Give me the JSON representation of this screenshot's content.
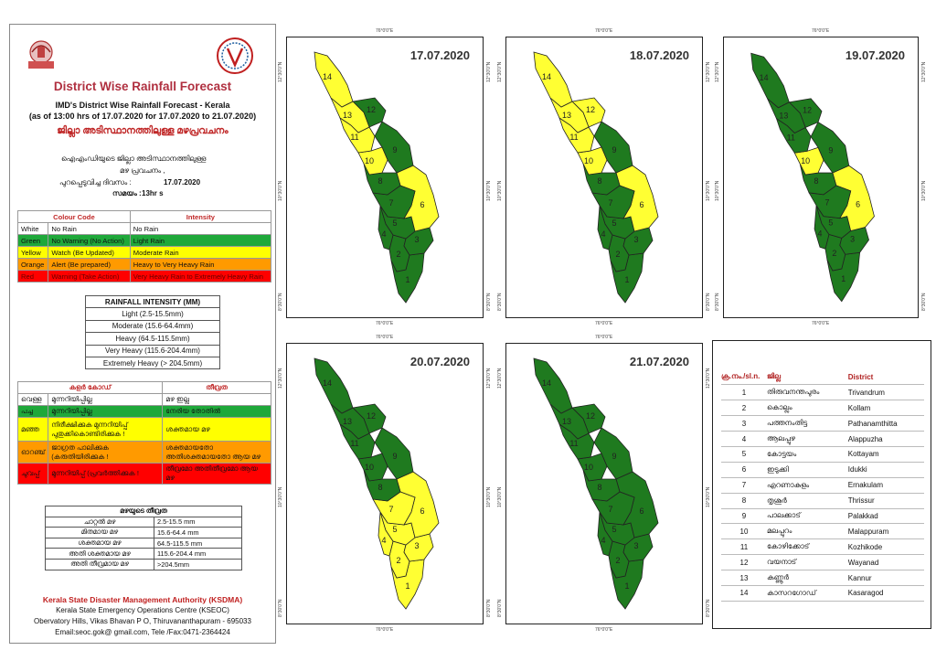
{
  "header": {
    "title": "District Wise Rainfall Forecast",
    "subtitle1": "IMD's District Wise Rainfall Forecast - Kerala",
    "subtitle2": "(as of 13:00 hrs of 17.07.2020  for 17.07.2020  to 21.07.2020)",
    "subtitle_ml": "ജില്ലാ അടിസ്ഥാനത്തിലുള്ള മഴപ്രവചനം",
    "ml_line1": "ഐഎംഡിയുടെ ജില്ലാ    അടിസ്ഥാനത്തിലുള്ള",
    "ml_line2": "മഴ പ്രവചനം  ,",
    "ml_line3_label": "പുറപ്പെടുവിച്ച          ദിവസം :",
    "ml_line3_value": "17.07.2020",
    "ml_line4_label": "സമയം :",
    "ml_line4_value": "13hr s"
  },
  "colour_code": {
    "headers": [
      "Colour Code",
      "Intensity"
    ],
    "rows": [
      {
        "colour": "White",
        "meaning": "No Rain",
        "intensity": "No Rain",
        "bg": "#ffffff"
      },
      {
        "colour": "Green",
        "meaning": "No Warning (No Action)",
        "intensity": "Light Rain",
        "bg": "#1fa83a"
      },
      {
        "colour": "Yellow",
        "meaning": "Watch (Be Updated)",
        "intensity": "Moderate Rain",
        "bg": "#ffff00"
      },
      {
        "colour": "Orange",
        "meaning": "Alert (Be prepared)",
        "intensity": "Heavy to Very Heavy Rain",
        "bg": "#ff9a00"
      },
      {
        "colour": "Red",
        "meaning": "Warning (Take Action)",
        "intensity": "Very Heavy Rain to Extremely Heavy Rain",
        "bg": "#ff0000"
      }
    ]
  },
  "rainfall_intensity": {
    "title": "RAINFALL INTENSITY (MM)",
    "rows": [
      "Light (2.5-15.5mm)",
      "Moderate (15.6-64.4mm)",
      "Heavy (64.5-115.5mm)",
      "Very Heavy (115.6-204.4mm)",
      "Extremely Heavy (> 204.5mm)"
    ]
  },
  "ml_colour_code": {
    "headers": [
      "കളർ കോഡ്",
      "തീവ്രത"
    ],
    "rows": [
      {
        "colour": "വെള്ള",
        "meaning": "മുന്നറിയിപ്പില്ല",
        "intensity": "മഴ ഇല്ല",
        "bg": "#ffffff"
      },
      {
        "colour": "പച്ച",
        "meaning": "മുന്നറിയിപ്പില്ല",
        "intensity": "നേരിയ തോതിൽ",
        "bg": "#1fa83a"
      },
      {
        "colour": "മഞ്ഞ",
        "meaning": "നിരീക്ഷിക്കുക മുന്നറിയിപ്പ് പുതുക്കികൊണ്ടിരിക്കുക !",
        "intensity": "ശക്തമായ മഴ",
        "bg": "#ffff00"
      },
      {
        "colour": "ഓറഞ്ച്",
        "meaning": "ജാഗ്രത പാലിക്കുക (കരുതിയിരിക്കുക !",
        "intensity": "ശക്തമായതോ അതിശക്തമായതോ ആയ മഴ",
        "bg": "#ff9a00"
      },
      {
        "colour": "ചുവപ്പ്",
        "meaning": "മുന്നറിയിപ്പ് (പ്രവർത്തിക്കുക !",
        "intensity": "തീവ്രമോ അതിതീവ്രമോ ആയ മഴ",
        "bg": "#ff0000"
      }
    ]
  },
  "ml_intensity": {
    "title": "മഴയുടെ തീവ്രത",
    "rows": [
      {
        "label": "ചാറ്റൽ മഴ",
        "value": "2.5-15.5 mm"
      },
      {
        "label": "മിതമായ മഴ",
        "value": "15.6-64.4 mm"
      },
      {
        "label": "ശക്തമായ മഴ",
        "value": "64.5-115.5 mm"
      },
      {
        "label": "അതി ശക്തമായ മഴ",
        "value": "115.6-204.4 mm"
      },
      {
        "label": "അതി തീവ്രമായ മഴ",
        "value": ">204.5mm"
      }
    ]
  },
  "footer": {
    "org": "Kerala State Disaster Management Authority (KSDMA)",
    "line1": "Kerala State Emergency Operations Centre (KSEOC)",
    "line2": "Obervatory Hills, Vikas Bhavan P O, Thiruvananthapuram - 695033",
    "line3": "Email:seoc.gok@ gmail.com, Tele /Fax:0471-2364424"
  },
  "map_coords": {
    "top": "76°0'0\"E",
    "bottom": "76°0'0\"E",
    "lat1": "12°30'0\"N",
    "lat2": "10°30'0\"N",
    "lat3": "8°30'0\"N"
  },
  "maps": [
    {
      "date": "17.07.2020",
      "colors": {
        "1": "#1f7a1f",
        "2": "#1f7a1f",
        "3": "#1f7a1f",
        "4": "#1f7a1f",
        "5": "#1f7a1f",
        "6": "#ffff33",
        "7": "#1f7a1f",
        "8": "#1f7a1f",
        "9": "#1f7a1f",
        "10": "#ffff33",
        "11": "#ffff33",
        "12": "#1f7a1f",
        "13": "#ffff33",
        "14": "#ffff33"
      }
    },
    {
      "date": "18.07.2020",
      "colors": {
        "1": "#1f7a1f",
        "2": "#1f7a1f",
        "3": "#1f7a1f",
        "4": "#1f7a1f",
        "5": "#1f7a1f",
        "6": "#ffff33",
        "7": "#1f7a1f",
        "8": "#1f7a1f",
        "9": "#1f7a1f",
        "10": "#ffff33",
        "11": "#ffff33",
        "12": "#ffff33",
        "13": "#ffff33",
        "14": "#ffff33"
      }
    },
    {
      "date": "19.07.2020",
      "colors": {
        "1": "#1f7a1f",
        "2": "#1f7a1f",
        "3": "#1f7a1f",
        "4": "#1f7a1f",
        "5": "#1f7a1f",
        "6": "#ffff33",
        "7": "#1f7a1f",
        "8": "#1f7a1f",
        "9": "#1f7a1f",
        "10": "#ffff33",
        "11": "#1f7a1f",
        "12": "#1f7a1f",
        "13": "#1f7a1f",
        "14": "#1f7a1f"
      }
    },
    {
      "date": "20.07.2020",
      "colors": {
        "1": "#ffff33",
        "2": "#ffff33",
        "3": "#ffff33",
        "4": "#ffff33",
        "5": "#ffff33",
        "6": "#ffff33",
        "7": "#ffff33",
        "8": "#1f7a1f",
        "9": "#1f7a1f",
        "10": "#1f7a1f",
        "11": "#1f7a1f",
        "12": "#1f7a1f",
        "13": "#1f7a1f",
        "14": "#1f7a1f"
      }
    },
    {
      "date": "21.07.2020",
      "colors": {
        "1": "#1f7a1f",
        "2": "#1f7a1f",
        "3": "#1f7a1f",
        "4": "#1f7a1f",
        "5": "#1f7a1f",
        "6": "#1f7a1f",
        "7": "#1f7a1f",
        "8": "#1f7a1f",
        "9": "#1f7a1f",
        "10": "#1f7a1f",
        "11": "#1f7a1f",
        "12": "#1f7a1f",
        "13": "#1f7a1f",
        "14": "#1f7a1f"
      }
    }
  ],
  "districts": {
    "headers": [
      "ക്ര.നം./sl.n.",
      "ജില്ല",
      "District"
    ],
    "rows": [
      {
        "n": "1",
        "ml": "തിരുവനന്തപുരം",
        "en": "Trivandrum"
      },
      {
        "n": "2",
        "ml": "കൊല്ലം",
        "en": "Kollam"
      },
      {
        "n": "3",
        "ml": "പത്തനംതിട്ട",
        "en": "Pathanamthitta"
      },
      {
        "n": "4",
        "ml": "ആലപ്പുഴ",
        "en": "Alappuzha"
      },
      {
        "n": "5",
        "ml": "കോട്ടയം",
        "en": "Kottayam"
      },
      {
        "n": "6",
        "ml": "ഇടുക്കി",
        "en": "Idukki"
      },
      {
        "n": "7",
        "ml": "എറണാകുളം",
        "en": "Ernakulam"
      },
      {
        "n": "8",
        "ml": "തൃശൂർ",
        "en": "Thrissur"
      },
      {
        "n": "9",
        "ml": "പാലക്കാട്",
        "en": "Palakkad"
      },
      {
        "n": "10",
        "ml": "മലപ്പുറം",
        "en": "Malappuram"
      },
      {
        "n": "11",
        "ml": "കോഴിക്കോട്",
        "en": "Kozhikode"
      },
      {
        "n": "12",
        "ml": "വയനാട്",
        "en": "Wayanad"
      },
      {
        "n": "13",
        "ml": "കണ്ണൂർ",
        "en": "Kannur"
      },
      {
        "n": "14",
        "ml": "കാസറഗോഡ്",
        "en": "Kasaragod"
      }
    ]
  }
}
